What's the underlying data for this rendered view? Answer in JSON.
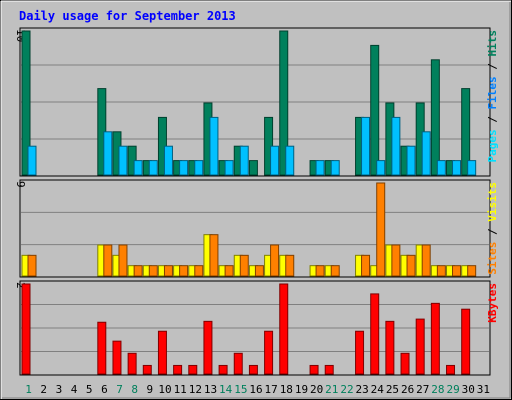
{
  "chart_data": {
    "type": "bar",
    "title": "Daily usage for September 2013",
    "colors": {
      "background": "#c0c0c0",
      "title": "#0000ff",
      "hits": "#00805c",
      "files": "#00c0ff",
      "pages": "#00e0ff",
      "visits": "#ffff00",
      "sites": "#ff8000",
      "kbytes": "#ff0000",
      "weekend_day": "#00805c",
      "weekday": "#000000",
      "grid": "#808080"
    },
    "days": [
      "1",
      "2",
      "3",
      "4",
      "5",
      "6",
      "7",
      "8",
      "9",
      "10",
      "11",
      "12",
      "13",
      "14",
      "15",
      "16",
      "17",
      "18",
      "19",
      "20",
      "21",
      "22",
      "23",
      "24",
      "25",
      "26",
      "27",
      "28",
      "29",
      "30",
      "31"
    ],
    "weekend_days": [
      "1",
      "7",
      "8",
      "14",
      "15",
      "21",
      "22",
      "28",
      "29"
    ],
    "panels": [
      {
        "id": "hits",
        "ymax_label": "10",
        "ymax": 10,
        "legend": [
          {
            "text": "Pages",
            "color": "#00e0ff"
          },
          {
            "text": " / ",
            "color": "#000000"
          },
          {
            "text": "Files",
            "color": "#0080ff"
          },
          {
            "text": " / ",
            "color": "#000000"
          },
          {
            "text": "Hits",
            "color": "#00805c"
          }
        ],
        "series": [
          {
            "values": [
              10,
              0,
              0,
              0,
              0,
              6,
              3,
              2,
              1,
              4,
              1,
              1,
              5,
              1,
              2,
              1,
              4,
              10,
              0,
              1,
              1,
              0,
              4,
              9,
              5,
              2,
              5,
              8,
              1,
              6,
              0
            ],
            "color": "#00805c"
          },
          {
            "values": [
              2,
              0,
              0,
              0,
              0,
              3,
              2,
              1,
              1,
              2,
              1,
              1,
              4,
              1,
              2,
              0,
              2,
              2,
              0,
              1,
              1,
              0,
              4,
              1,
              4,
              2,
              3,
              1,
              1,
              1,
              0
            ],
            "color": "#00c0ff"
          }
        ]
      },
      {
        "id": "visits",
        "ymax_label": "9",
        "ymax": 9,
        "legend": [
          {
            "text": "Sites",
            "color": "#ff8000"
          },
          {
            "text": " / ",
            "color": "#000000"
          },
          {
            "text": "Visits",
            "color": "#ffff00"
          }
        ],
        "series": [
          {
            "values": [
              2,
              0,
              0,
              0,
              0,
              3,
              2,
              1,
              1,
              1,
              1,
              1,
              4,
              1,
              2,
              1,
              2,
              2,
              0,
              1,
              1,
              0,
              2,
              1,
              3,
              2,
              3,
              1,
              1,
              1,
              0
            ],
            "color": "#ffff00"
          },
          {
            "values": [
              2,
              0,
              0,
              0,
              0,
              3,
              3,
              1,
              1,
              1,
              1,
              1,
              4,
              1,
              2,
              1,
              3,
              2,
              0,
              1,
              1,
              0,
              2,
              9,
              3,
              2,
              3,
              1,
              1,
              1,
              0
            ],
            "color": "#ff8000"
          }
        ]
      },
      {
        "id": "kbytes",
        "ymax_label": "2",
        "ymax": 2,
        "legend": [
          {
            "text": "KBytes",
            "color": "#ff0000"
          }
        ],
        "series": [
          {
            "values": [
              2,
              0,
              0,
              0,
              0,
              1.15,
              0.73,
              0.46,
              0.19,
              0.95,
              0.19,
              0.19,
              1.17,
              0.19,
              0.46,
              0.19,
              0.95,
              2,
              0,
              0.19,
              0.19,
              0,
              0.95,
              1.78,
              1.17,
              0.46,
              1.22,
              1.57,
              0.19,
              1.44,
              0
            ],
            "color": "#ff0000"
          }
        ]
      }
    ]
  }
}
